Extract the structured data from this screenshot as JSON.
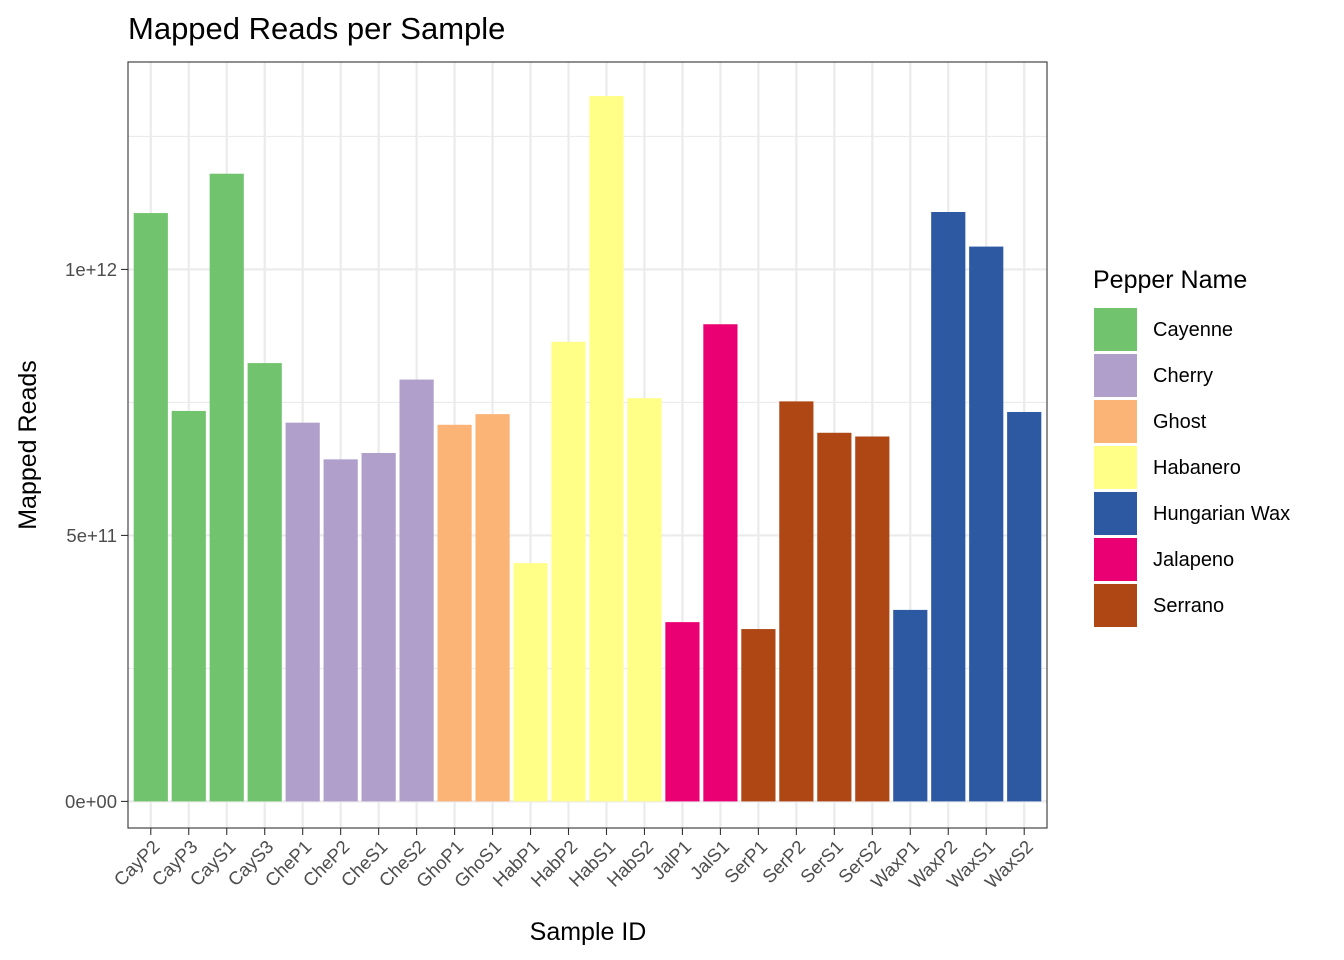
{
  "chart_data": {
    "type": "bar",
    "title": "Mapped Reads per Sample",
    "xlabel": "Sample ID",
    "ylabel": "Mapped Reads",
    "ylim": [
      -50000000000,
      1390000000000
    ],
    "yticks": [
      0,
      500000000000,
      1000000000000
    ],
    "ytick_labels": [
      "0e+00",
      "5e+11",
      "1e+12"
    ],
    "grid": true,
    "legend": {
      "title": "Pepper Name",
      "position": "right"
    },
    "groups": [
      {
        "name": "Cayenne",
        "color": "#71c36e"
      },
      {
        "name": "Cherry",
        "color": "#b09ecb"
      },
      {
        "name": "Ghost",
        "color": "#fbb475"
      },
      {
        "name": "Habanero",
        "color": "#ffff88"
      },
      {
        "name": "Hungarian Wax",
        "color": "#2d58a2"
      },
      {
        "name": "Jalapeno",
        "color": "#ea0072"
      },
      {
        "name": "Serrano",
        "color": "#ae4713"
      }
    ],
    "bars": [
      {
        "category": "CayP2",
        "value": 1106000000000,
        "group": "Cayenne"
      },
      {
        "category": "CayP3",
        "value": 734000000000,
        "group": "Cayenne"
      },
      {
        "category": "CayS1",
        "value": 1180000000000,
        "group": "Cayenne"
      },
      {
        "category": "CayS3",
        "value": 824000000000,
        "group": "Cayenne"
      },
      {
        "category": "CheP1",
        "value": 712000000000,
        "group": "Cherry"
      },
      {
        "category": "CheP2",
        "value": 643000000000,
        "group": "Cherry"
      },
      {
        "category": "CheS1",
        "value": 655000000000,
        "group": "Cherry"
      },
      {
        "category": "CheS2",
        "value": 793000000000,
        "group": "Cherry"
      },
      {
        "category": "GhoP1",
        "value": 708000000000,
        "group": "Ghost"
      },
      {
        "category": "GhoS1",
        "value": 728000000000,
        "group": "Ghost"
      },
      {
        "category": "HabP1",
        "value": 448000000000,
        "group": "Habanero"
      },
      {
        "category": "HabP2",
        "value": 864000000000,
        "group": "Habanero"
      },
      {
        "category": "HabS1",
        "value": 1326000000000,
        "group": "Habanero"
      },
      {
        "category": "HabS2",
        "value": 758000000000,
        "group": "Habanero"
      },
      {
        "category": "JalP1",
        "value": 337000000000,
        "group": "Jalapeno"
      },
      {
        "category": "JalS1",
        "value": 897000000000,
        "group": "Jalapeno"
      },
      {
        "category": "SerP1",
        "value": 324000000000,
        "group": "Serrano"
      },
      {
        "category": "SerP2",
        "value": 752000000000,
        "group": "Serrano"
      },
      {
        "category": "SerS1",
        "value": 693000000000,
        "group": "Serrano"
      },
      {
        "category": "SerS2",
        "value": 686000000000,
        "group": "Serrano"
      },
      {
        "category": "WaxP1",
        "value": 360000000000,
        "group": "Hungarian Wax"
      },
      {
        "category": "WaxP2",
        "value": 1108000000000,
        "group": "Hungarian Wax"
      },
      {
        "category": "WaxS1",
        "value": 1043000000000,
        "group": "Hungarian Wax"
      },
      {
        "category": "WaxS2",
        "value": 732000000000,
        "group": "Hungarian Wax"
      }
    ]
  }
}
